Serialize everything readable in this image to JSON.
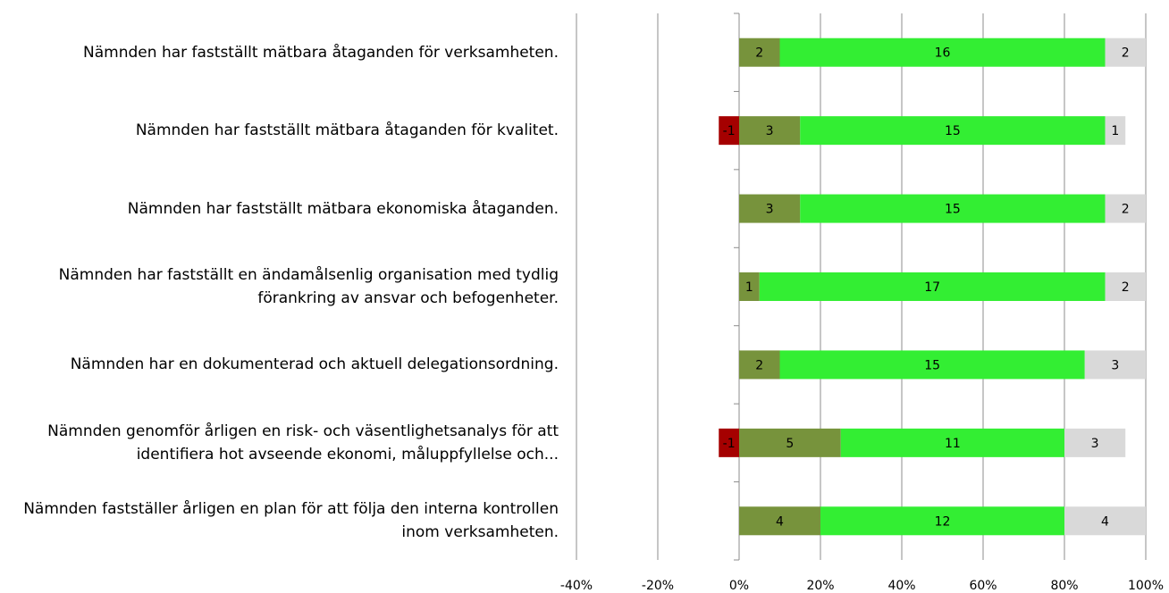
{
  "chart_data": {
    "type": "stacked-bar-horizontal",
    "categories": [
      "Nämnden har fastställt mätbara åtaganden för verksamheten.",
      "Nämnden har fastställt mätbara åtaganden för kvalitet.",
      "Nämnden har fastställt mätbara ekonomiska åtaganden.",
      "Nämnden har fastställt en ändamålsenlig organisation med tydlig förankring av ansvar och befogenheter.",
      "Nämnden har en dokumenterad och aktuell delegationsordning.",
      "Nämnden genomför årligen en risk- och väsentlighetsanalys för att identifiera hot avseende ekonomi, måluppfyllelse och...",
      "Nämnden fastställer årligen en plan för att följa den interna kontrollen inom verksamheten."
    ],
    "series": [
      {
        "color": "#a50000",
        "values": [
          null,
          -5,
          null,
          null,
          null,
          -5,
          null
        ],
        "value_labels": [
          null,
          "-1",
          null,
          null,
          null,
          "-1",
          null
        ]
      },
      {
        "color": "#77933c",
        "values": [
          10,
          15,
          15,
          5,
          10,
          25,
          20
        ],
        "value_labels": [
          "2",
          "3",
          "3",
          "1",
          "2",
          "5",
          "4"
        ]
      },
      {
        "color": "#33ee33",
        "values": [
          80,
          75,
          75,
          85,
          75,
          55,
          60
        ],
        "value_labels": [
          "16",
          "15",
          "15",
          "17",
          "15",
          "11",
          "12"
        ]
      },
      {
        "color": "#d9d9d9",
        "values": [
          10,
          5,
          10,
          10,
          15,
          15,
          20
        ],
        "value_labels": [
          "2",
          "1",
          "2",
          "2",
          "3",
          "3",
          "4"
        ]
      }
    ],
    "xlim": [
      -40,
      100
    ],
    "xticks": [
      {
        "value": -40,
        "label": "-40%"
      },
      {
        "value": -20,
        "label": "-20%"
      },
      {
        "value": 0,
        "label": "0%"
      },
      {
        "value": 20,
        "label": "20%"
      },
      {
        "value": 40,
        "label": "40%"
      },
      {
        "value": 60,
        "label": "60%"
      },
      {
        "value": 80,
        "label": "80%"
      },
      {
        "value": 100,
        "label": "100%"
      }
    ],
    "grid": true
  }
}
